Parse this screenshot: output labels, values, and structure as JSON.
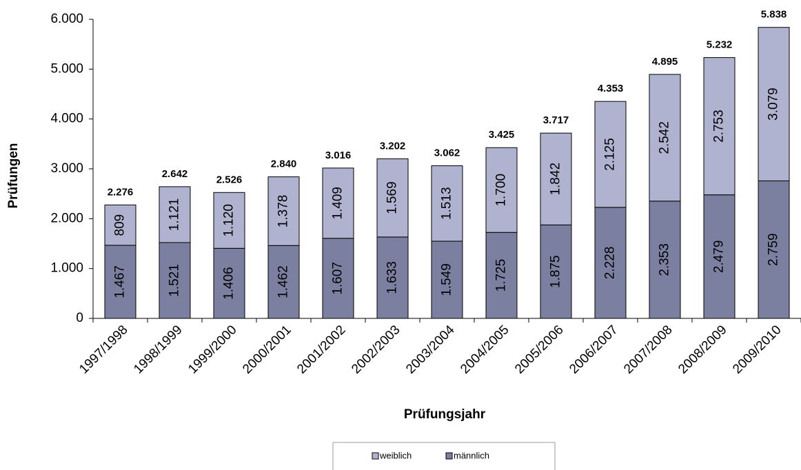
{
  "chart_data": {
    "type": "stacked_bar",
    "x_label": "Prüfungsjahr",
    "y_label": "Prüfungen",
    "categories": [
      "1997/1998",
      "1998/1999",
      "1999/2000",
      "2000/2001",
      "2001/2002",
      "2002/2003",
      "2003/2004",
      "2004/2005",
      "2005/2006",
      "2006/2007",
      "2007/2008",
      "2008/2009",
      "2009/2010"
    ],
    "series": [
      {
        "name": "männlich",
        "color": "#7b7fa0",
        "values": [
          1467,
          1521,
          1406,
          1462,
          1607,
          1633,
          1549,
          1725,
          1875,
          2228,
          2353,
          2479,
          2759
        ],
        "value_labels": [
          "1.467",
          "1.521",
          "1.406",
          "1.462",
          "1.607",
          "1.633",
          "1.549",
          "1.725",
          "1.875",
          "2.228",
          "2.353",
          "2.479",
          "2.759"
        ]
      },
      {
        "name": "weiblich",
        "color": "#b0b3d0",
        "values": [
          809,
          1121,
          1120,
          1378,
          1409,
          1569,
          1513,
          1700,
          1842,
          2125,
          2542,
          2753,
          3079
        ],
        "value_labels": [
          "809",
          "1.121",
          "1.120",
          "1.378",
          "1.409",
          "1.569",
          "1.513",
          "1.700",
          "1.842",
          "2.125",
          "2.542",
          "2.753",
          "3.079"
        ]
      }
    ],
    "totals": {
      "values": [
        2276,
        2642,
        2526,
        2840,
        3016,
        3202,
        3062,
        3425,
        3717,
        4353,
        4895,
        5232,
        5838
      ],
      "value_labels": [
        "2.276",
        "2.642",
        "2.526",
        "2.840",
        "3.016",
        "3.202",
        "3.062",
        "3.425",
        "3.717",
        "4.353",
        "4.895",
        "5.232",
        "5.838"
      ]
    },
    "ylim": [
      0,
      6000
    ],
    "yticks": [
      0,
      {
        "value": 1000,
        "label": "1.000"
      },
      {
        "value": 2000,
        "label": "2.000"
      },
      {
        "value": 3000,
        "label": "3.000"
      },
      {
        "value": 4000,
        "label": "4.000"
      },
      {
        "value": 5000,
        "label": "5.000"
      },
      {
        "value": 6000,
        "label": "6.000"
      }
    ],
    "legend": "bottom"
  }
}
